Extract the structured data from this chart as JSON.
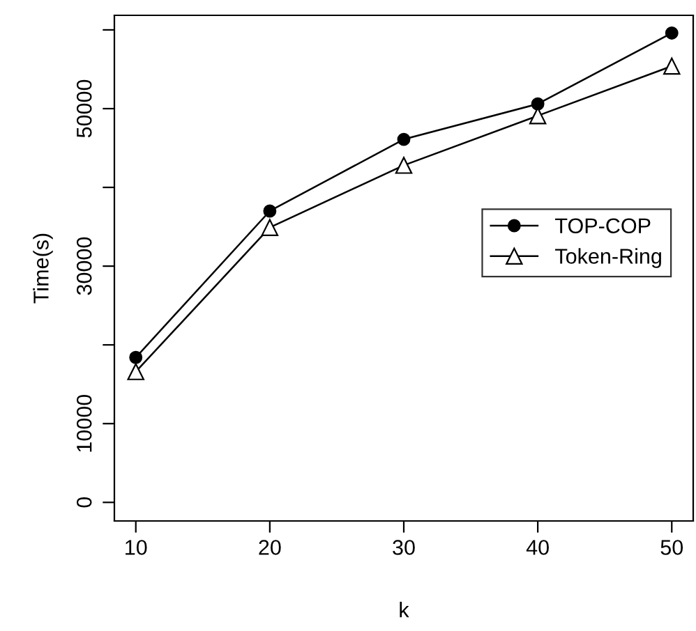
{
  "chart_data": {
    "type": "line",
    "xlabel": "k",
    "ylabel": "Time(s)",
    "x": [
      10,
      20,
      30,
      40,
      50
    ],
    "series": [
      {
        "name": "TOP-COP",
        "color": "#000000",
        "marker": "circle",
        "values": [
          18400,
          37000,
          46100,
          50600,
          59600
        ]
      },
      {
        "name": "Token-Ring",
        "color": "#000000",
        "marker": "triangle",
        "values": [
          16600,
          34900,
          42800,
          49100,
          55400
        ]
      }
    ],
    "xlim": [
      8.4,
      51.6
    ],
    "ylim": [
      -2360,
      61850
    ],
    "xticks": [
      10,
      20,
      30,
      40,
      50
    ],
    "yticks": [
      0,
      10000,
      {
        "value": 20000,
        "label": null
      },
      30000,
      {
        "value": 40000,
        "label": null
      },
      50000,
      {
        "value": 60000,
        "label": null
      }
    ],
    "grid": false,
    "legend": "right",
    "line_style": "solid"
  }
}
